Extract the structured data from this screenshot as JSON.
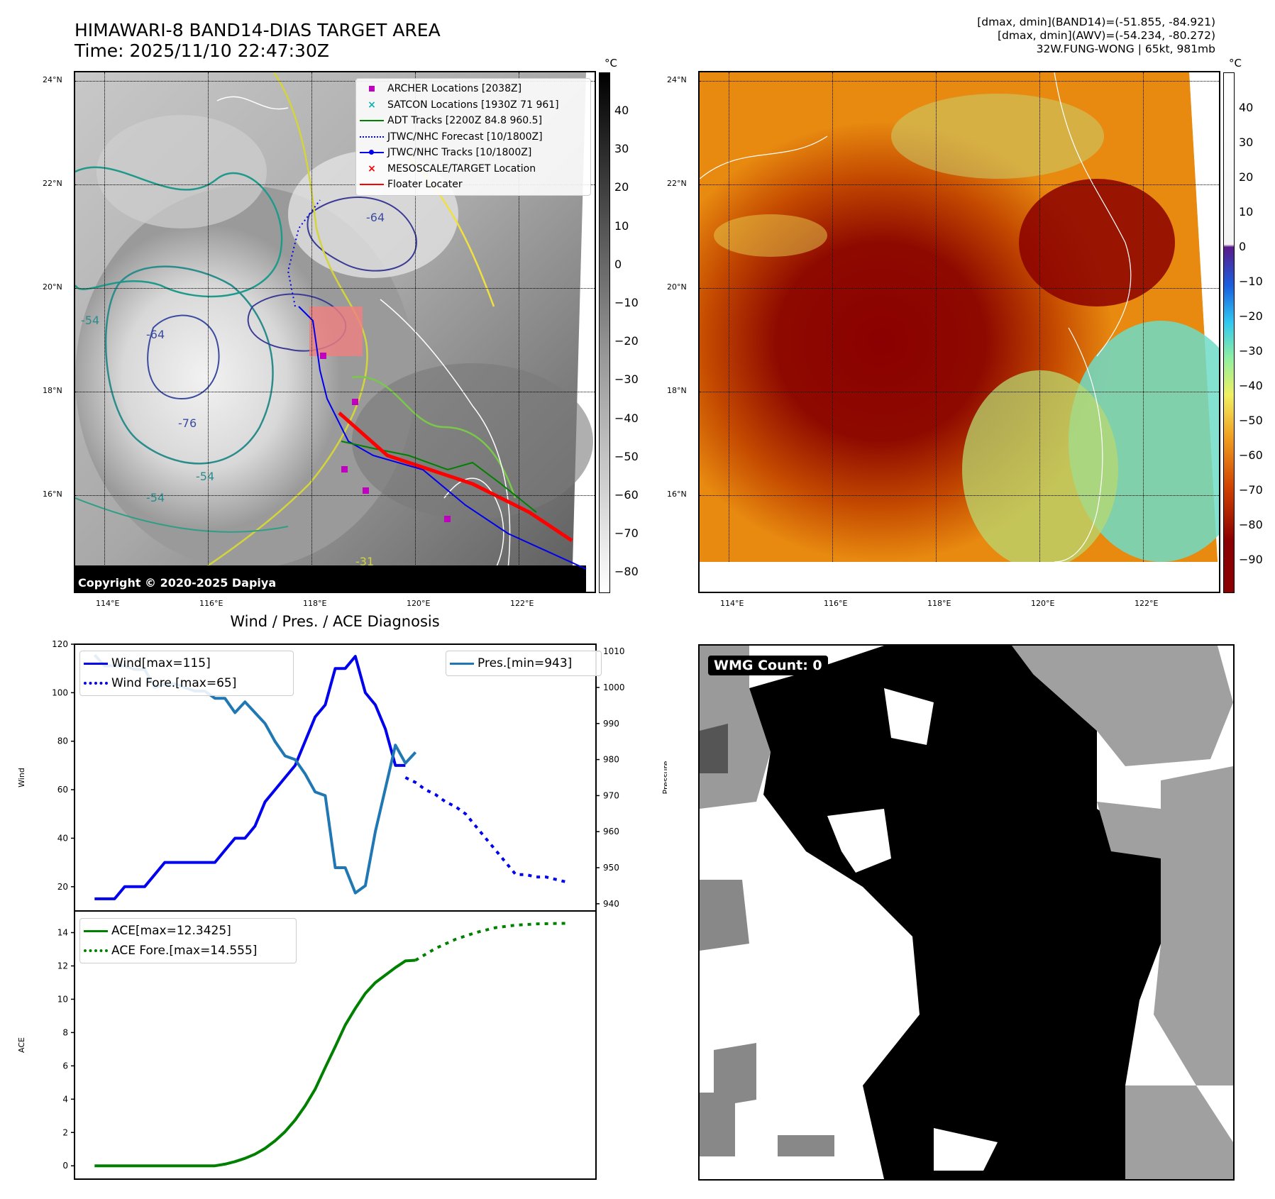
{
  "header": {
    "title_line1": "HIMAWARI-8 BAND14-DIAS TARGET AREA",
    "title_line2": "Time: 2025/11/10 22:47:30Z",
    "right_line1": "[dmax, dmin](BAND14)=(-51.855, -84.921)",
    "right_line2": "[dmax, dmin](AWV)=(-54.234, -80.272)",
    "right_line3": "32W.FUNG-WONG | 65kt, 981mb"
  },
  "map_ticks": {
    "lon": [
      "114°E",
      "116°E",
      "118°E",
      "120°E",
      "122°E"
    ],
    "lat": [
      "24°N",
      "22°N",
      "20°N",
      "18°N",
      "16°N"
    ]
  },
  "ir_panel": {
    "colorbar_unit": "°C",
    "colorbar_ticks": [
      "40",
      "30",
      "20",
      "10",
      "0",
      "−10",
      "−20",
      "−30",
      "−40",
      "−50",
      "−60",
      "−70",
      "−80"
    ],
    "copyright": "Copyright © 2020-2025 Dapiya",
    "contour_labels": [
      "-54",
      "-54",
      "-54",
      "-64",
      "-64",
      "-76",
      "-31"
    ],
    "legend": [
      {
        "label": "ARCHER Locations [2038Z]",
        "symbol": "square",
        "color": "#c000c0"
      },
      {
        "label": "SATCON Locations [1930Z 71 961]",
        "symbol": "x",
        "color": "#10b0b0"
      },
      {
        "label": "ADT Tracks [2200Z 84.8 960.5]",
        "symbol": "line",
        "color": "#008000"
      },
      {
        "label": "JTWC/NHC Forecast [10/1800Z]",
        "symbol": "dotted",
        "color": "#0000ee"
      },
      {
        "label": "JTWC/NHC Tracks [10/1800Z]",
        "symbol": "line-dot",
        "color": "#0000ee"
      },
      {
        "label": "MESOSCALE/TARGET Location",
        "symbol": "x",
        "color": "#ff0000"
      },
      {
        "label": "Floater Locater",
        "symbol": "line",
        "color": "#ff0000"
      }
    ]
  },
  "awv_panel": {
    "colorbar_unit": "°C",
    "colorbar_ticks": [
      "40",
      "30",
      "20",
      "10",
      "0",
      "−10",
      "−20",
      "−30",
      "−40",
      "−50",
      "−60",
      "−70",
      "−80",
      "−90"
    ]
  },
  "wmg_panel": {
    "label": "WMG Count: 0"
  },
  "chart_data": [
    {
      "type": "line",
      "title": "Wind / Pres. / ACE Diagnosis",
      "ylabel": "Wind",
      "y2label": "Pressure",
      "ylim": [
        10,
        120
      ],
      "y2lim": [
        938,
        1012
      ],
      "yticks": [
        20,
        40,
        60,
        80,
        100,
        120
      ],
      "y2ticks": [
        940,
        950,
        960,
        970,
        980,
        990,
        1000,
        1010
      ],
      "xlim": [
        -2,
        50
      ],
      "series": [
        {
          "name": "Wind[max=115]",
          "color": "#0000ee",
          "style": "solid",
          "x": [
            0,
            1,
            2,
            3,
            4,
            5,
            6,
            7,
            8,
            9,
            10,
            11,
            12,
            13,
            14,
            15,
            16,
            17,
            18,
            19,
            20,
            21,
            22,
            23,
            24,
            25,
            26,
            27,
            28,
            29,
            30,
            31
          ],
          "values": [
            15,
            15,
            15,
            20,
            20,
            20,
            25,
            30,
            30,
            30,
            30,
            30,
            30,
            35,
            40,
            40,
            45,
            55,
            60,
            65,
            70,
            80,
            90,
            95,
            110,
            110,
            115,
            100,
            95,
            85,
            70,
            70
          ]
        },
        {
          "name": "Wind Fore.[max=65]",
          "color": "#0000ee",
          "style": "dotted",
          "x": [
            31,
            32,
            33,
            34,
            35,
            36,
            37,
            38,
            39,
            40,
            41,
            42,
            43,
            44,
            45,
            46,
            47
          ],
          "values": [
            65,
            63,
            60,
            58,
            55,
            53,
            50,
            45,
            40,
            35,
            30,
            25,
            25,
            24,
            24,
            23,
            22
          ]
        },
        {
          "name": "Pres.[min=943]",
          "color": "#1f77b4",
          "style": "solid",
          "axis": "right",
          "x": [
            0,
            1,
            2,
            3,
            4,
            5,
            6,
            7,
            8,
            9,
            10,
            11,
            12,
            13,
            14,
            15,
            16,
            17,
            18,
            19,
            20,
            21,
            22,
            23,
            24,
            25,
            26,
            27,
            28,
            29,
            30,
            31,
            32
          ],
          "values": [
            1009,
            1006,
            1006,
            1006,
            1005,
            1005,
            1000,
            1001,
            1001,
            1000,
            999,
            999,
            997,
            997,
            993,
            996,
            993,
            990,
            985,
            981,
            980,
            976,
            971,
            970,
            950,
            950,
            943,
            945,
            960,
            972,
            984,
            979,
            982
          ]
        }
      ]
    },
    {
      "type": "line",
      "ylabel": "ACE",
      "ylim": [
        -0.8,
        15.3
      ],
      "yticks": [
        0,
        2,
        4,
        6,
        8,
        10,
        12,
        14
      ],
      "xlim": [
        -2,
        50
      ],
      "series": [
        {
          "name": "ACE[max=12.3425]",
          "color": "#008000",
          "style": "solid",
          "x": [
            0,
            2,
            4,
            6,
            8,
            10,
            12,
            13,
            14,
            15,
            16,
            17,
            18,
            19,
            20,
            21,
            22,
            23,
            24,
            25,
            26,
            27,
            28,
            29,
            30,
            31,
            32
          ],
          "values": [
            0,
            0,
            0,
            0,
            0,
            0,
            0,
            0.1,
            0.25,
            0.45,
            0.7,
            1.05,
            1.5,
            2.05,
            2.75,
            3.6,
            4.6,
            5.9,
            7.15,
            8.45,
            9.45,
            10.35,
            11.0,
            11.45,
            11.9,
            12.3,
            12.34
          ]
        },
        {
          "name": "ACE Fore.[max=14.555]",
          "color": "#008000",
          "style": "dotted",
          "x": [
            32,
            34,
            36,
            38,
            40,
            42,
            44,
            46,
            47
          ],
          "values": [
            12.34,
            13.05,
            13.6,
            14.0,
            14.3,
            14.45,
            14.52,
            14.55,
            14.555
          ]
        }
      ]
    }
  ]
}
